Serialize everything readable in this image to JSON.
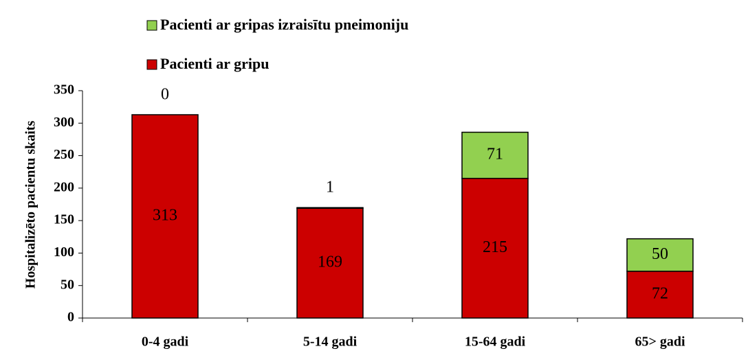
{
  "chart_data": {
    "type": "stacked_bar",
    "y_label": "Hospitalizēto pacientu skaits",
    "categories": [
      "0-4 gadi",
      "5-14 gadi",
      "15-64 gadi",
      "65> gadi"
    ],
    "series": [
      {
        "name": "Pacienti ar gripu",
        "color": "#cc0000",
        "values": [
          313,
          169,
          215,
          72
        ]
      },
      {
        "name": "Pacienti ar gripas izraisītu  pneimoniju",
        "color": "#92d050",
        "values": [
          0,
          1,
          71,
          50
        ]
      }
    ],
    "ylim": [
      0,
      350
    ],
    "yticks": [
      0,
      50,
      100,
      150,
      200,
      250,
      300,
      350
    ],
    "grid": false
  }
}
